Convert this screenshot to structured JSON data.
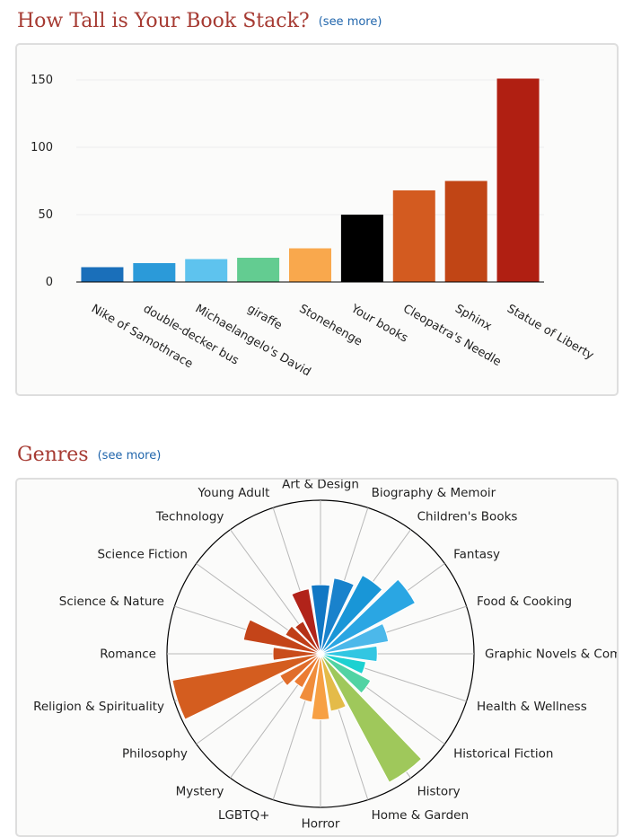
{
  "stack_section": {
    "title": "How Tall is Your Book Stack?",
    "see_more": "(see more)"
  },
  "genres_section": {
    "title": "Genres",
    "see_more": "(see more)"
  },
  "chart_data": [
    {
      "type": "bar",
      "categories": [
        "Nike of Samothrace",
        "double-decker bus",
        "Michaelangelo's David",
        "giraffe",
        "Stonehenge",
        "Your books",
        "Cleopatra's Needle",
        "Sphinx",
        "Statue of Liberty"
      ],
      "values": [
        11,
        14,
        17,
        18,
        25,
        50,
        68,
        75,
        151
      ],
      "colors": [
        "#1a6fba",
        "#2b9ad9",
        "#5ec3ee",
        "#63cc91",
        "#f9a84d",
        "#000000",
        "#d35b20",
        "#c14515",
        "#b01f12"
      ],
      "yticks": [
        0,
        50,
        100,
        150
      ],
      "ylim": [
        0,
        151
      ],
      "grid": true
    },
    {
      "type": "polar-bar",
      "categories": [
        "Art & Design",
        "Biography & Memoir",
        "Children's Books",
        "Fantasy",
        "Food & Cooking",
        "Graphic Novels & Comics",
        "Health & Wellness",
        "Historical Fiction",
        "History",
        "Home & Garden",
        "Horror",
        "LGBTQ+",
        "Mystery",
        "Philosophy",
        "Religion & Spirituality",
        "Romance",
        "Science & Nature",
        "Science Fiction",
        "Technology",
        "Young Adult"
      ],
      "values": [
        0.45,
        0.5,
        0.58,
        0.7,
        0.45,
        0.37,
        0.3,
        0.37,
        0.95,
        0.38,
        0.43,
        0.32,
        0.25,
        0.3,
        0.98,
        0.31,
        0.51,
        0.26,
        0.24,
        0.43
      ],
      "colors": [
        "#1177c4",
        "#1982cc",
        "#1996d7",
        "#2aa6e3",
        "#4cb8ea",
        "#32c6e2",
        "#1cd1d1",
        "#51d3a3",
        "#9fc85b",
        "#e4bb49",
        "#f7a044",
        "#f08d3b",
        "#ec7c33",
        "#e06d2b",
        "#d45d1f",
        "#c94c1b",
        "#c44419",
        "#c03f17",
        "#b53116",
        "#b1231a"
      ]
    }
  ]
}
